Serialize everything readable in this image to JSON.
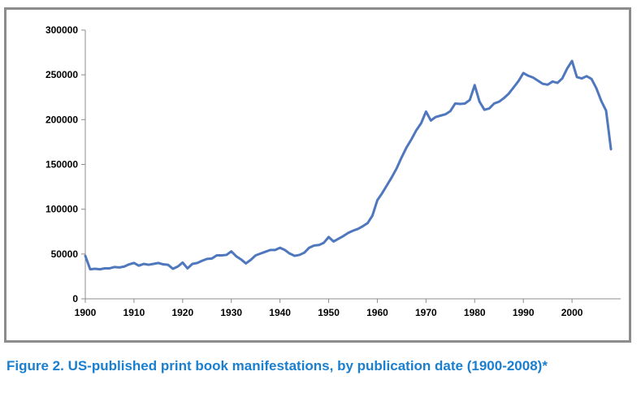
{
  "caption": "Figure 2. US-published print book manifestations, by publication date (1900-2008)*",
  "colors": {
    "line": "#4f77be",
    "caption": "#1a7fcf",
    "frame": "#8c8c8c",
    "axis": "#8c8c8c"
  },
  "chart_data": {
    "type": "line",
    "title": "",
    "xlabel": "",
    "ylabel": "",
    "xlim": [
      1900,
      2010
    ],
    "ylim": [
      0,
      300000
    ],
    "x_ticks": [
      1900,
      1910,
      1920,
      1930,
      1940,
      1950,
      1960,
      1970,
      1980,
      1990,
      2000
    ],
    "y_ticks": [
      0,
      50000,
      100000,
      150000,
      200000,
      250000,
      300000
    ],
    "grid": false,
    "legend": "none",
    "series": [
      {
        "color": "#4f77be",
        "x": [
          1900,
          1901,
          1902,
          1903,
          1904,
          1905,
          1906,
          1907,
          1908,
          1909,
          1910,
          1911,
          1912,
          1913,
          1914,
          1915,
          1916,
          1917,
          1918,
          1919,
          1920,
          1921,
          1922,
          1923,
          1924,
          1925,
          1926,
          1927,
          1928,
          1929,
          1930,
          1931,
          1932,
          1933,
          1934,
          1935,
          1936,
          1937,
          1938,
          1939,
          1940,
          1941,
          1942,
          1943,
          1944,
          1945,
          1946,
          1947,
          1948,
          1949,
          1950,
          1951,
          1952,
          1953,
          1954,
          1955,
          1956,
          1957,
          1958,
          1959,
          1960,
          1961,
          1962,
          1963,
          1964,
          1965,
          1966,
          1967,
          1968,
          1969,
          1970,
          1971,
          1972,
          1973,
          1974,
          1975,
          1976,
          1977,
          1978,
          1979,
          1980,
          1981,
          1982,
          1983,
          1984,
          1985,
          1986,
          1987,
          1988,
          1989,
          1990,
          1991,
          1992,
          1993,
          1994,
          1995,
          1996,
          1997,
          1998,
          1999,
          2000,
          2001,
          2002,
          2003,
          2004,
          2005,
          2006,
          2007,
          2008
        ],
        "y": [
          48000,
          33000,
          33500,
          33000,
          34000,
          34000,
          35500,
          35000,
          36000,
          38500,
          40000,
          37000,
          39000,
          38000,
          39000,
          40000,
          38500,
          38000,
          33500,
          36000,
          40500,
          34000,
          39000,
          40000,
          42500,
          44500,
          45000,
          48500,
          48500,
          49000,
          53000,
          47500,
          44000,
          39500,
          43500,
          48500,
          50500,
          52500,
          54500,
          54500,
          57000,
          54500,
          50500,
          48000,
          49000,
          51500,
          57000,
          59500,
          60000,
          62500,
          69000,
          64000,
          67000,
          70000,
          73500,
          76000,
          78000,
          81000,
          84500,
          93000,
          110000,
          118000,
          127000,
          136000,
          146000,
          158000,
          169000,
          178000,
          188000,
          196000,
          209000,
          199000,
          203000,
          204500,
          206000,
          209500,
          218000,
          217500,
          218000,
          222000,
          238500,
          220000,
          211000,
          212500,
          218000,
          220000,
          224000,
          229000,
          236000,
          243000,
          252000,
          249000,
          247000,
          243500,
          240000,
          239000,
          242500,
          241000,
          246000,
          257000,
          265500,
          247500,
          246000,
          248500,
          245500,
          235000,
          221000,
          210000,
          167000
        ]
      }
    ]
  }
}
